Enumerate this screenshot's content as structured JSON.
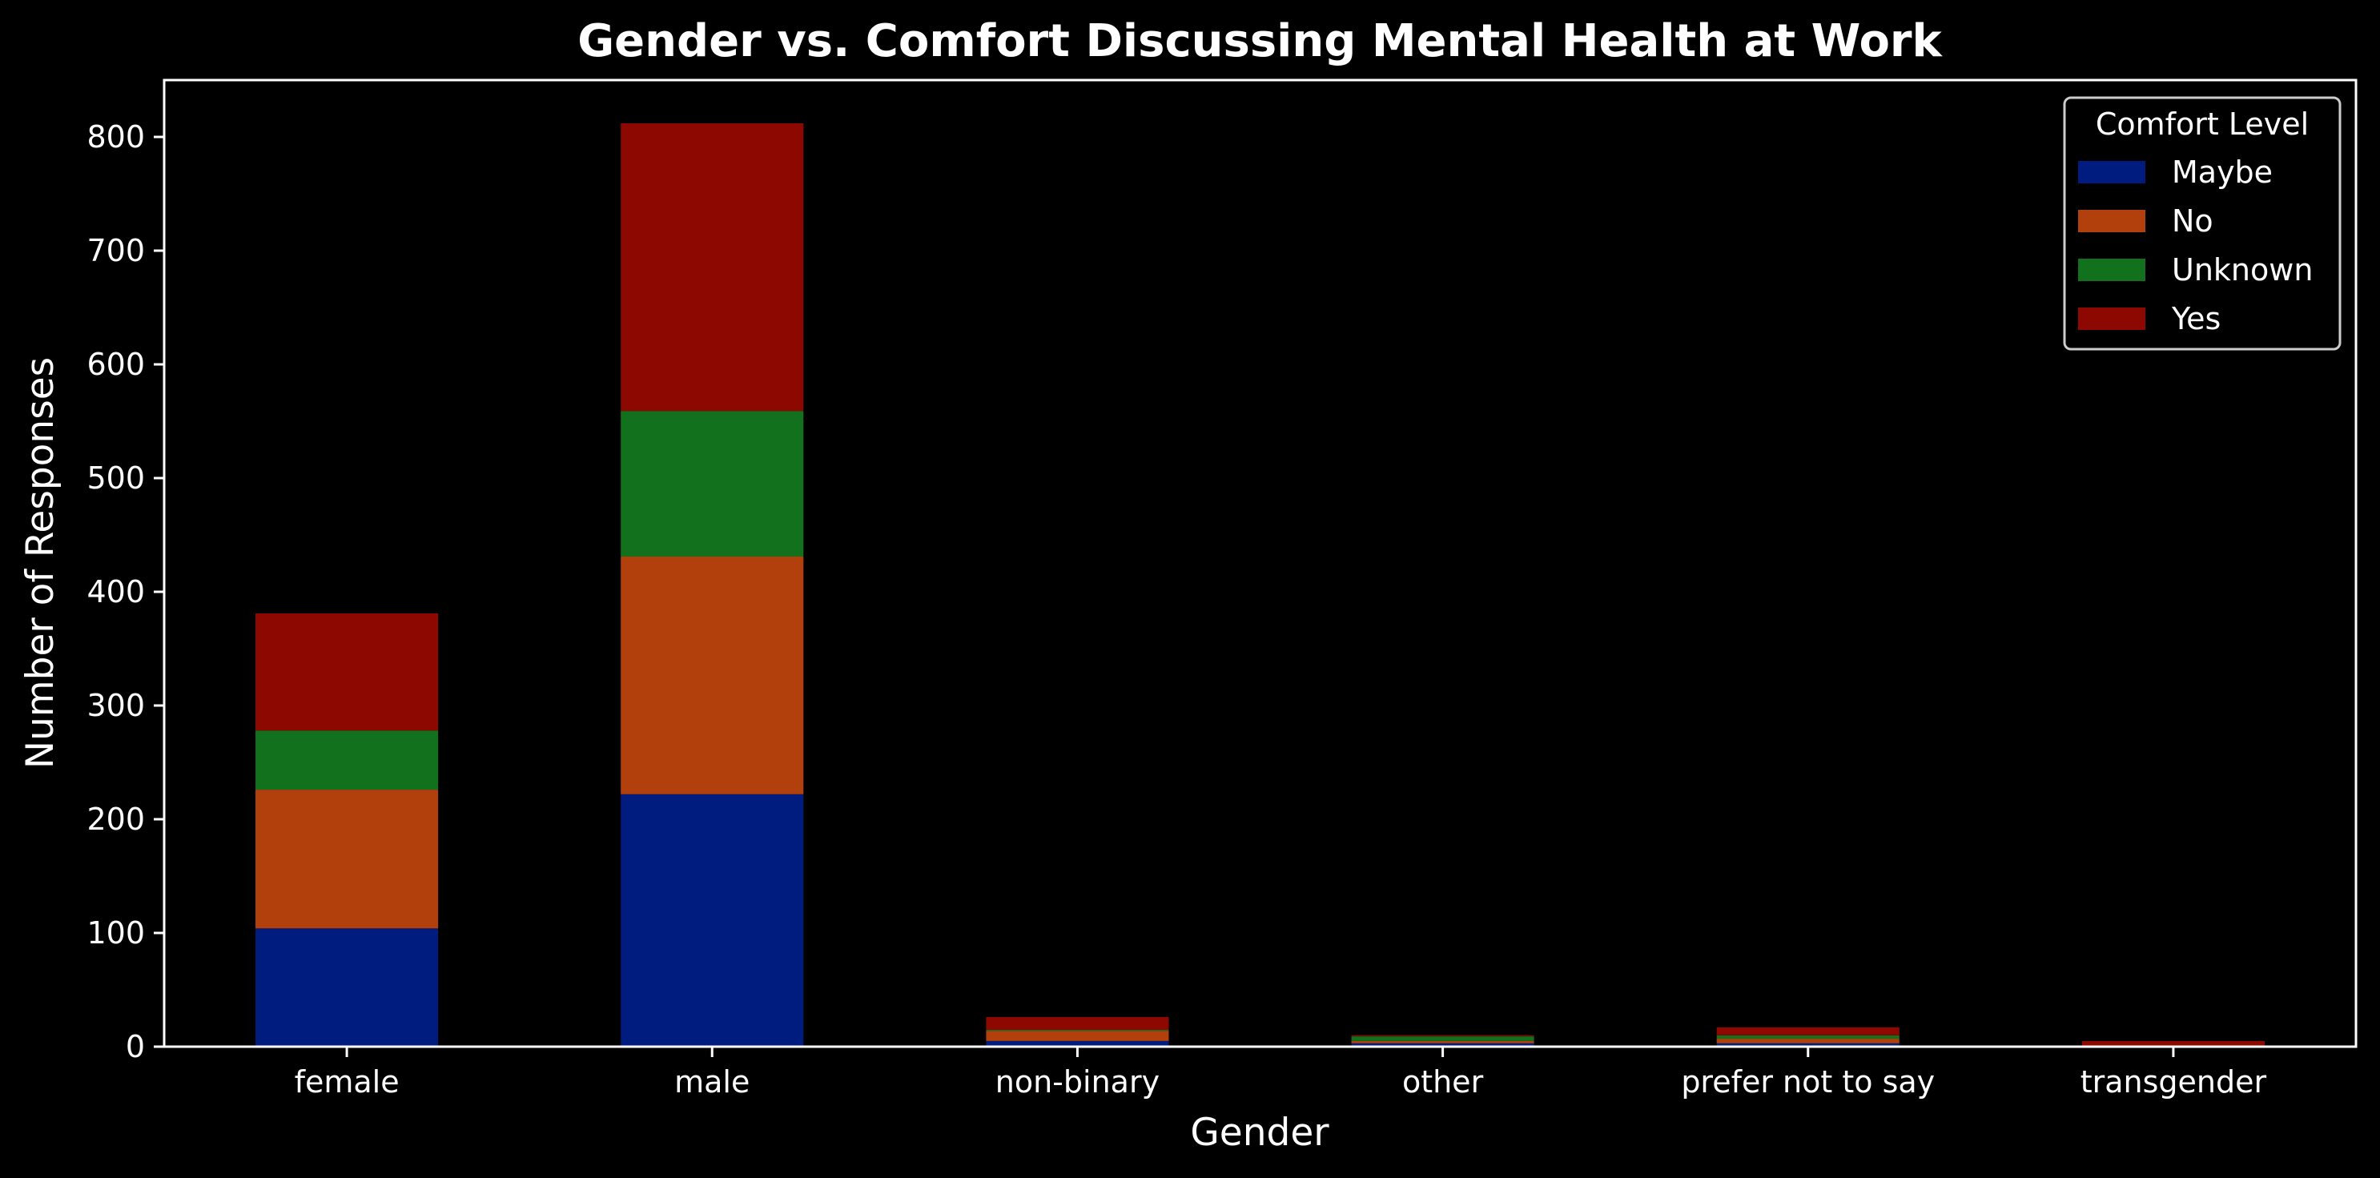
{
  "chart_data": {
    "type": "bar",
    "stacked": true,
    "title": "Gender vs. Comfort Discussing Mental Health at Work",
    "xlabel": "Gender",
    "ylabel": "Number of Responses",
    "ylim": [
      0,
      850
    ],
    "yticks": [
      0,
      100,
      200,
      300,
      400,
      500,
      600,
      700,
      800
    ],
    "grid": false,
    "legend": {
      "title": "Comfort Level",
      "placement": "top-right"
    },
    "categories": [
      "female",
      "male",
      "non-binary",
      "other",
      "prefer not to say",
      "transgender"
    ],
    "series": [
      {
        "name": "Maybe",
        "color": "#001c7f",
        "values": [
          104,
          222,
          5,
          3,
          3,
          0
        ]
      },
      {
        "name": "No",
        "color": "#b1400d",
        "values": [
          122,
          209,
          9,
          2,
          4,
          0
        ]
      },
      {
        "name": "Unknown",
        "color": "#12711c",
        "values": [
          52,
          128,
          1,
          4,
          3,
          0
        ]
      },
      {
        "name": "Yes",
        "color": "#8c0800",
        "values": [
          103,
          253,
          11,
          1,
          7,
          5
        ]
      }
    ],
    "colors": {
      "background": "#000000",
      "axes": "#ffffff",
      "text": "#ffffff",
      "legend_border": "#cccccc"
    }
  }
}
